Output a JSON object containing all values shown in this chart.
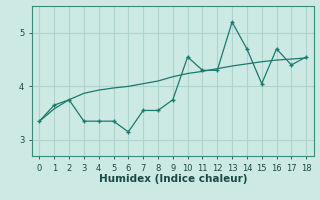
{
  "x": [
    0,
    1,
    2,
    3,
    4,
    5,
    6,
    7,
    8,
    9,
    10,
    11,
    12,
    13,
    14,
    15,
    16,
    17,
    18
  ],
  "y_line": [
    3.35,
    3.65,
    3.75,
    3.35,
    3.35,
    3.35,
    3.15,
    3.55,
    3.55,
    3.75,
    4.55,
    4.3,
    4.3,
    5.2,
    4.7,
    4.05,
    4.7,
    4.4,
    4.55
  ],
  "y_trend": [
    3.35,
    3.58,
    3.75,
    3.87,
    3.93,
    3.97,
    4.0,
    4.05,
    4.1,
    4.18,
    4.24,
    4.28,
    4.33,
    4.38,
    4.42,
    4.46,
    4.49,
    4.51,
    4.53
  ],
  "line_color": "#1a7a6e",
  "bg_color": "#cce9e4",
  "grid_color": "#aed4ce",
  "xlabel": "Humidex (Indice chaleur)",
  "xlabel_fontsize": 7.5,
  "yticks": [
    3,
    4,
    5
  ],
  "xticks": [
    0,
    1,
    2,
    3,
    4,
    5,
    6,
    7,
    8,
    9,
    10,
    11,
    12,
    13,
    14,
    15,
    16,
    17,
    18
  ],
  "ylim": [
    2.7,
    5.5
  ],
  "xlim": [
    -0.5,
    18.5
  ],
  "tick_fontsize": 6.0
}
